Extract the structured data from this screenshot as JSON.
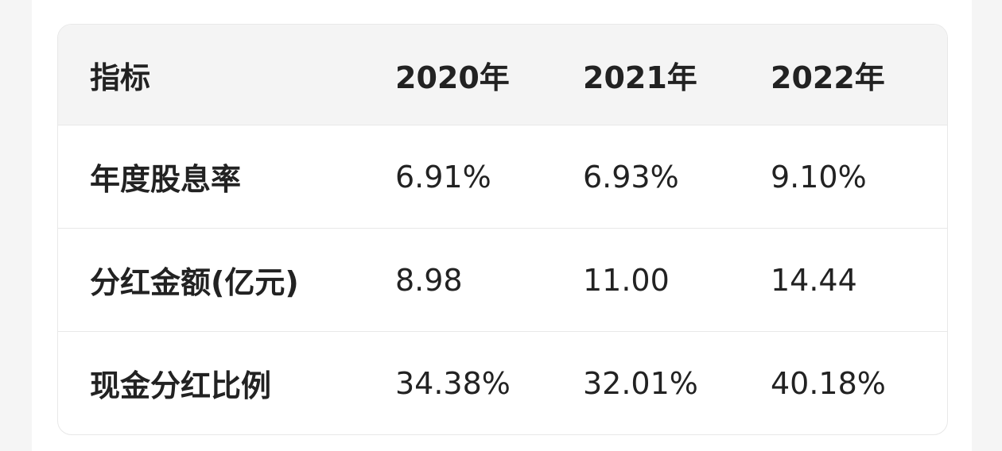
{
  "table": {
    "header": [
      "指标",
      "2020年",
      "2021年",
      "2022年"
    ],
    "rows": [
      [
        "年度股息率",
        "6.91%",
        "6.93%",
        "9.10%"
      ],
      [
        "分红金额(亿元)",
        "8.98",
        "11.00",
        "14.44"
      ],
      [
        "现金分红比例",
        "34.38%",
        "32.01%",
        "40.18%"
      ]
    ]
  }
}
